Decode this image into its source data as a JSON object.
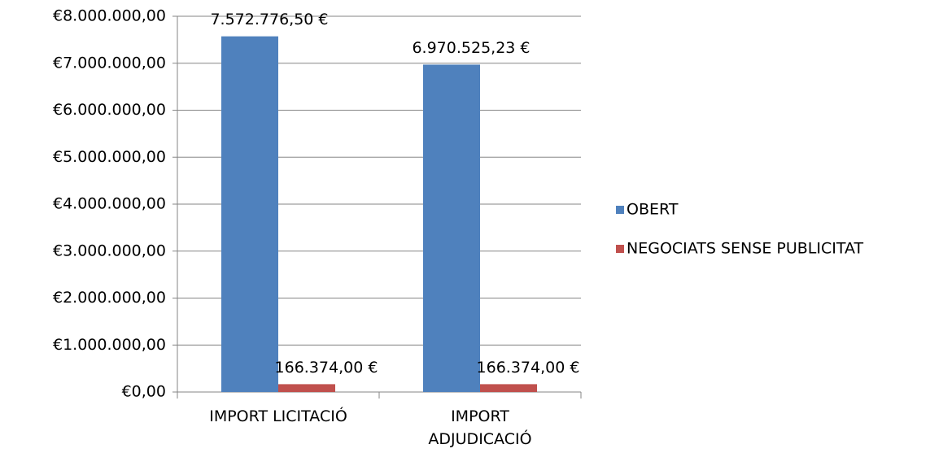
{
  "chart_data": {
    "type": "bar",
    "categories": [
      "IMPORT LICITACIÓ",
      "IMPORT ADJUDICACIÓ"
    ],
    "series": [
      {
        "name": "OBERT",
        "color": "#4f81bd",
        "values": [
          7572776.5,
          6970525.23
        ],
        "value_labels": [
          "7.572.776,50 €",
          "6.970.525,23 €"
        ]
      },
      {
        "name": "NEGOCIATS SENSE PUBLICITAT",
        "color": "#c0504d",
        "values": [
          166374,
          166374
        ],
        "value_labels": [
          "166.374,00 €",
          "166.374,00 €"
        ]
      }
    ],
    "ylim": [
      0,
      8000000
    ],
    "yticks": [
      {
        "value": 0,
        "label": "€0,00"
      },
      {
        "value": 1000000,
        "label": "€1.000.000,00"
      },
      {
        "value": 2000000,
        "label": "€2.000.000,00"
      },
      {
        "value": 3000000,
        "label": "€3.000.000,00"
      },
      {
        "value": 4000000,
        "label": "€4.000.000,00"
      },
      {
        "value": 5000000,
        "label": "€5.000.000,00"
      },
      {
        "value": 6000000,
        "label": "€6.000.000,00"
      },
      {
        "value": 7000000,
        "label": "€7.000.000,00"
      },
      {
        "value": 8000000,
        "label": "€8.000.000,00"
      }
    ],
    "grid": true,
    "legend": "right"
  }
}
